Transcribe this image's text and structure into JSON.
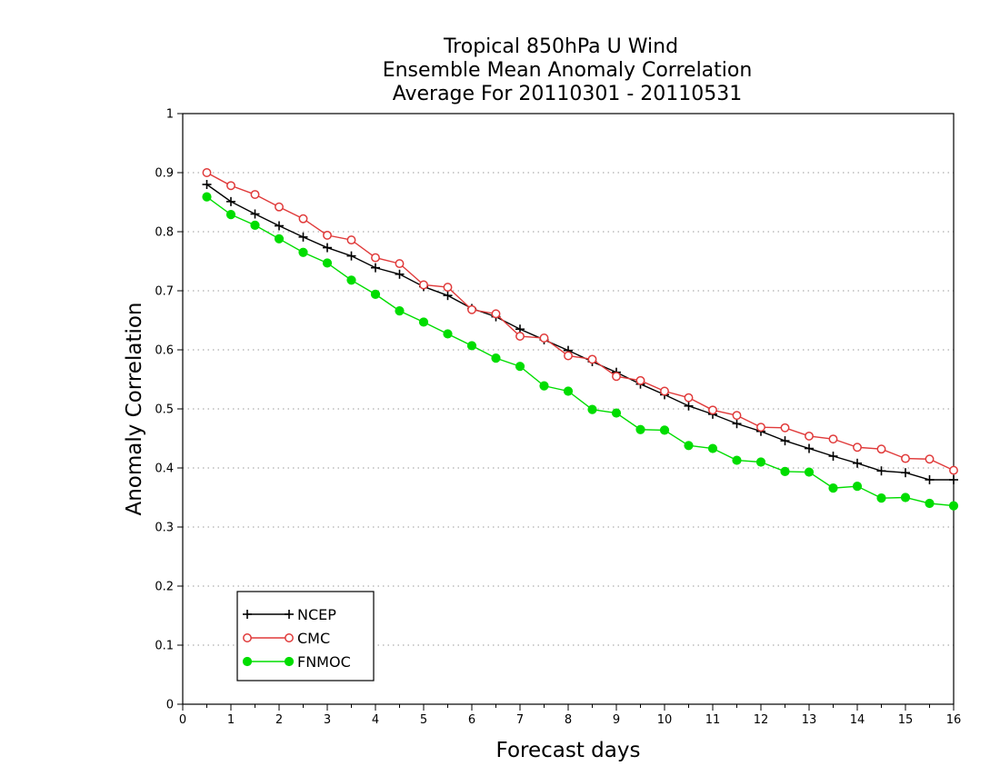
{
  "chart_data": {
    "type": "line",
    "title": [
      "Tropical 850hPa U Wind",
      "Ensemble Mean Anomaly Correlation",
      "Average For 20110301 - 20110531"
    ],
    "xlabel": "Forecast days",
    "ylabel": "Anomaly Correlation",
    "xlim": [
      0,
      16
    ],
    "ylim": [
      0,
      1
    ],
    "xticks": [
      "0",
      "1",
      "2",
      "3",
      "4",
      "5",
      "6",
      "7",
      "8",
      "9",
      "10",
      "11",
      "12",
      "13",
      "14",
      "15",
      "16"
    ],
    "yticks": [
      "0",
      "0.1",
      "0.2",
      "0.3",
      "0.4",
      "0.5",
      "0.6",
      "0.7",
      "0.8",
      "0.9",
      "1"
    ],
    "grid": "horizontal dotted",
    "legend_position": "bottom-left",
    "x": [
      0.5,
      1,
      1.5,
      2,
      2.5,
      3,
      3.5,
      4,
      4.5,
      5,
      5.5,
      6,
      6.5,
      7,
      7.5,
      8,
      8.5,
      9,
      9.5,
      10,
      10.5,
      11,
      11.5,
      12,
      12.5,
      13,
      13.5,
      14,
      14.5,
      15,
      15.5,
      16
    ],
    "series": [
      {
        "name": "NCEP",
        "color": "#000000",
        "marker": "plus",
        "values": [
          0.88,
          0.851,
          0.83,
          0.81,
          0.791,
          0.773,
          0.759,
          0.739,
          0.728,
          0.707,
          0.692,
          0.67,
          0.656,
          0.635,
          0.617,
          0.599,
          0.58,
          0.562,
          0.542,
          0.524,
          0.505,
          0.491,
          0.475,
          0.462,
          0.446,
          0.433,
          0.42,
          0.408,
          0.395,
          0.392,
          0.38,
          0.38
        ]
      },
      {
        "name": "CMC",
        "color": "#e03a3a",
        "marker": "open-circle",
        "values": [
          0.9,
          0.878,
          0.863,
          0.842,
          0.822,
          0.794,
          0.786,
          0.756,
          0.746,
          0.71,
          0.706,
          0.668,
          0.661,
          0.623,
          0.62,
          0.59,
          0.584,
          0.555,
          0.548,
          0.53,
          0.519,
          0.498,
          0.489,
          0.469,
          0.468,
          0.454,
          0.449,
          0.435,
          0.432,
          0.416,
          0.415,
          0.396
        ]
      },
      {
        "name": "FNMOC",
        "color": "#00dd00",
        "marker": "filled-circle",
        "values": [
          0.859,
          0.829,
          0.811,
          0.788,
          0.765,
          0.747,
          0.718,
          0.694,
          0.666,
          0.647,
          0.627,
          0.607,
          0.586,
          0.572,
          0.539,
          0.53,
          0.499,
          0.493,
          0.465,
          0.464,
          0.438,
          0.433,
          0.413,
          0.41,
          0.394,
          0.393,
          0.366,
          0.369,
          0.349,
          0.35,
          0.34,
          0.336
        ]
      }
    ]
  }
}
